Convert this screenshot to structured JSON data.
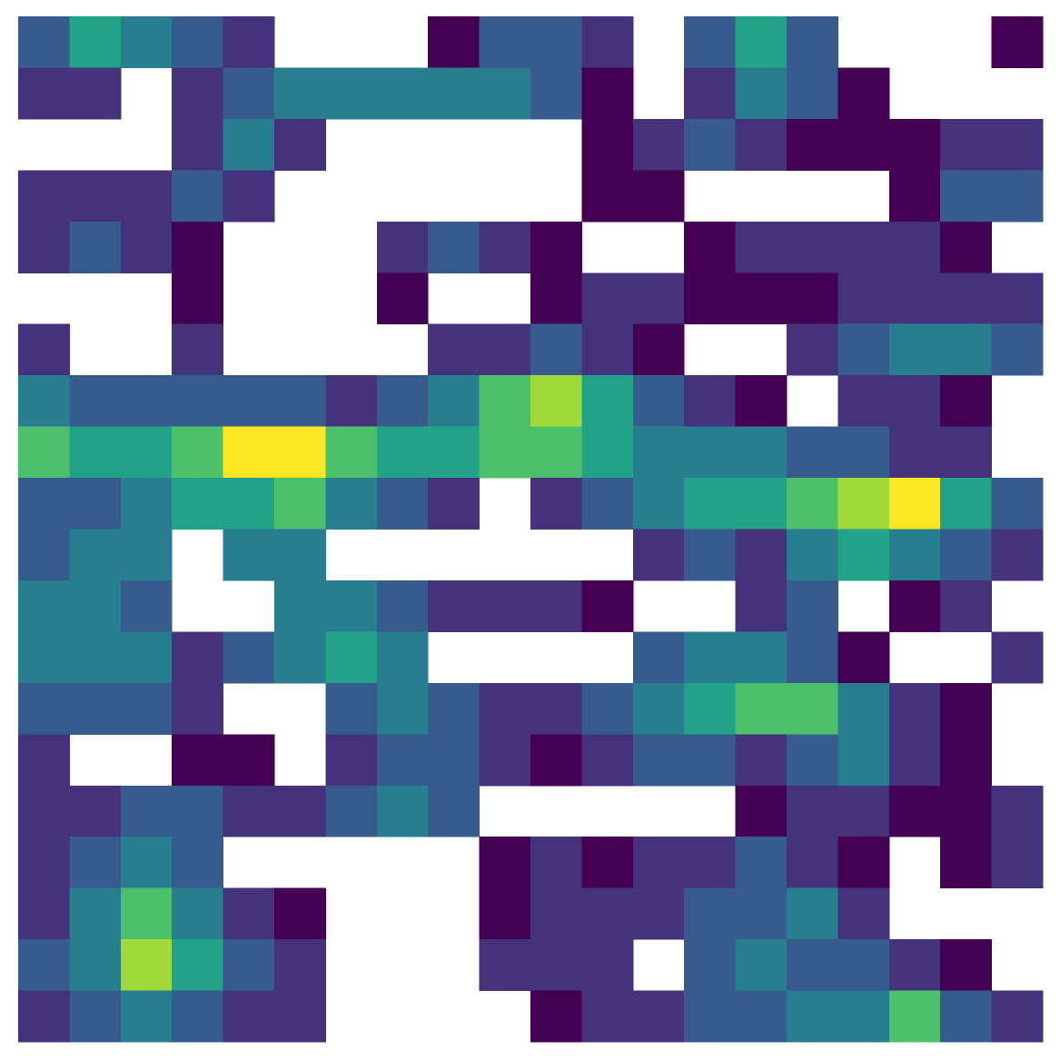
{
  "chart_data": {
    "type": "heatmap",
    "colormap": "viridis",
    "values": [
      [
        0.3,
        0.5,
        0.4,
        0.3,
        0.2,
        null,
        null,
        null,
        0.1,
        0.3,
        0.3,
        0.2,
        null,
        0.3,
        0.5,
        0.3,
        null,
        null,
        null,
        0.1
      ],
      [
        0.2,
        0.2,
        null,
        0.2,
        0.3,
        0.4,
        0.4,
        0.4,
        0.4,
        0.4,
        0.3,
        0.1,
        null,
        0.2,
        0.4,
        0.3,
        0.1,
        null,
        null,
        null
      ],
      [
        null,
        null,
        null,
        0.2,
        0.4,
        0.2,
        null,
        null,
        null,
        null,
        null,
        0.1,
        0.2,
        0.3,
        0.2,
        0.1,
        0.1,
        0.1,
        0.2,
        0.2
      ],
      [
        0.2,
        0.2,
        0.2,
        0.3,
        0.2,
        null,
        null,
        null,
        null,
        null,
        null,
        0.1,
        0.1,
        null,
        null,
        null,
        null,
        0.1,
        0.3,
        0.3
      ],
      [
        0.2,
        0.3,
        0.2,
        0.1,
        null,
        null,
        null,
        0.2,
        0.3,
        0.2,
        0.1,
        null,
        null,
        0.1,
        0.2,
        0.2,
        0.2,
        0.2,
        0.1,
        null
      ],
      [
        null,
        null,
        null,
        0.1,
        null,
        null,
        null,
        0.1,
        null,
        null,
        0.1,
        0.2,
        0.2,
        0.1,
        0.1,
        0.1,
        0.2,
        0.2,
        0.2,
        0.2
      ],
      [
        0.2,
        null,
        null,
        0.2,
        null,
        null,
        null,
        null,
        0.2,
        0.2,
        0.3,
        0.2,
        0.1,
        null,
        null,
        0.2,
        0.3,
        0.4,
        0.4,
        0.3
      ],
      [
        0.4,
        0.3,
        0.3,
        0.3,
        0.3,
        0.3,
        0.2,
        0.3,
        0.4,
        0.6,
        0.7,
        0.5,
        0.3,
        0.2,
        0.1,
        null,
        0.2,
        0.2,
        0.1,
        null
      ],
      [
        0.6,
        0.5,
        0.5,
        0.6,
        0.8,
        0.8,
        0.6,
        0.5,
        0.5,
        0.6,
        0.6,
        0.5,
        0.4,
        0.4,
        0.4,
        0.3,
        0.3,
        0.2,
        0.2,
        null
      ],
      [
        0.3,
        0.3,
        0.4,
        0.5,
        0.5,
        0.6,
        0.4,
        0.3,
        0.2,
        null,
        0.2,
        0.3,
        0.4,
        0.5,
        0.5,
        0.6,
        0.7,
        0.8,
        0.5,
        0.3
      ],
      [
        0.3,
        0.4,
        0.4,
        null,
        0.4,
        0.4,
        null,
        null,
        null,
        null,
        null,
        null,
        0.2,
        0.3,
        0.2,
        0.4,
        0.5,
        0.4,
        0.3,
        0.2
      ],
      [
        0.4,
        0.4,
        0.3,
        null,
        null,
        0.4,
        0.4,
        0.3,
        0.2,
        0.2,
        0.2,
        0.1,
        null,
        null,
        0.2,
        0.3,
        null,
        0.1,
        0.2,
        null
      ],
      [
        0.4,
        0.4,
        0.4,
        0.2,
        0.3,
        0.4,
        0.5,
        0.4,
        null,
        null,
        null,
        null,
        0.3,
        0.4,
        0.4,
        0.3,
        0.1,
        null,
        null,
        0.2
      ],
      [
        0.3,
        0.3,
        0.3,
        0.2,
        null,
        null,
        0.3,
        0.4,
        0.3,
        0.2,
        0.2,
        0.3,
        0.4,
        0.5,
        0.6,
        0.6,
        0.4,
        0.2,
        0.1,
        null
      ],
      [
        0.2,
        null,
        null,
        0.1,
        0.1,
        null,
        0.2,
        0.3,
        0.3,
        0.2,
        0.1,
        0.2,
        0.3,
        0.3,
        0.2,
        0.3,
        0.4,
        0.2,
        0.1,
        null
      ],
      [
        0.2,
        0.2,
        0.3,
        0.3,
        0.2,
        0.2,
        0.3,
        0.4,
        0.3,
        null,
        null,
        null,
        null,
        null,
        0.1,
        0.2,
        0.2,
        0.1,
        0.1,
        0.2
      ],
      [
        0.2,
        0.3,
        0.4,
        0.3,
        null,
        null,
        null,
        null,
        null,
        0.1,
        0.2,
        0.1,
        0.2,
        0.2,
        0.3,
        0.2,
        0.1,
        null,
        0.1,
        0.2
      ],
      [
        0.2,
        0.4,
        0.6,
        0.4,
        0.2,
        0.1,
        null,
        null,
        null,
        0.1,
        0.2,
        0.2,
        0.2,
        0.3,
        0.3,
        0.4,
        0.2,
        null,
        null,
        null
      ],
      [
        0.3,
        0.4,
        0.7,
        0.5,
        0.3,
        0.2,
        null,
        null,
        null,
        0.2,
        0.2,
        0.2,
        null,
        0.3,
        0.4,
        0.3,
        0.3,
        0.2,
        0.1,
        null
      ],
      [
        0.2,
        0.3,
        0.4,
        0.3,
        0.2,
        0.2,
        null,
        null,
        null,
        null,
        0.1,
        0.2,
        0.2,
        0.3,
        0.3,
        0.4,
        0.4,
        0.6,
        0.3,
        0.2
      ]
    ]
  }
}
